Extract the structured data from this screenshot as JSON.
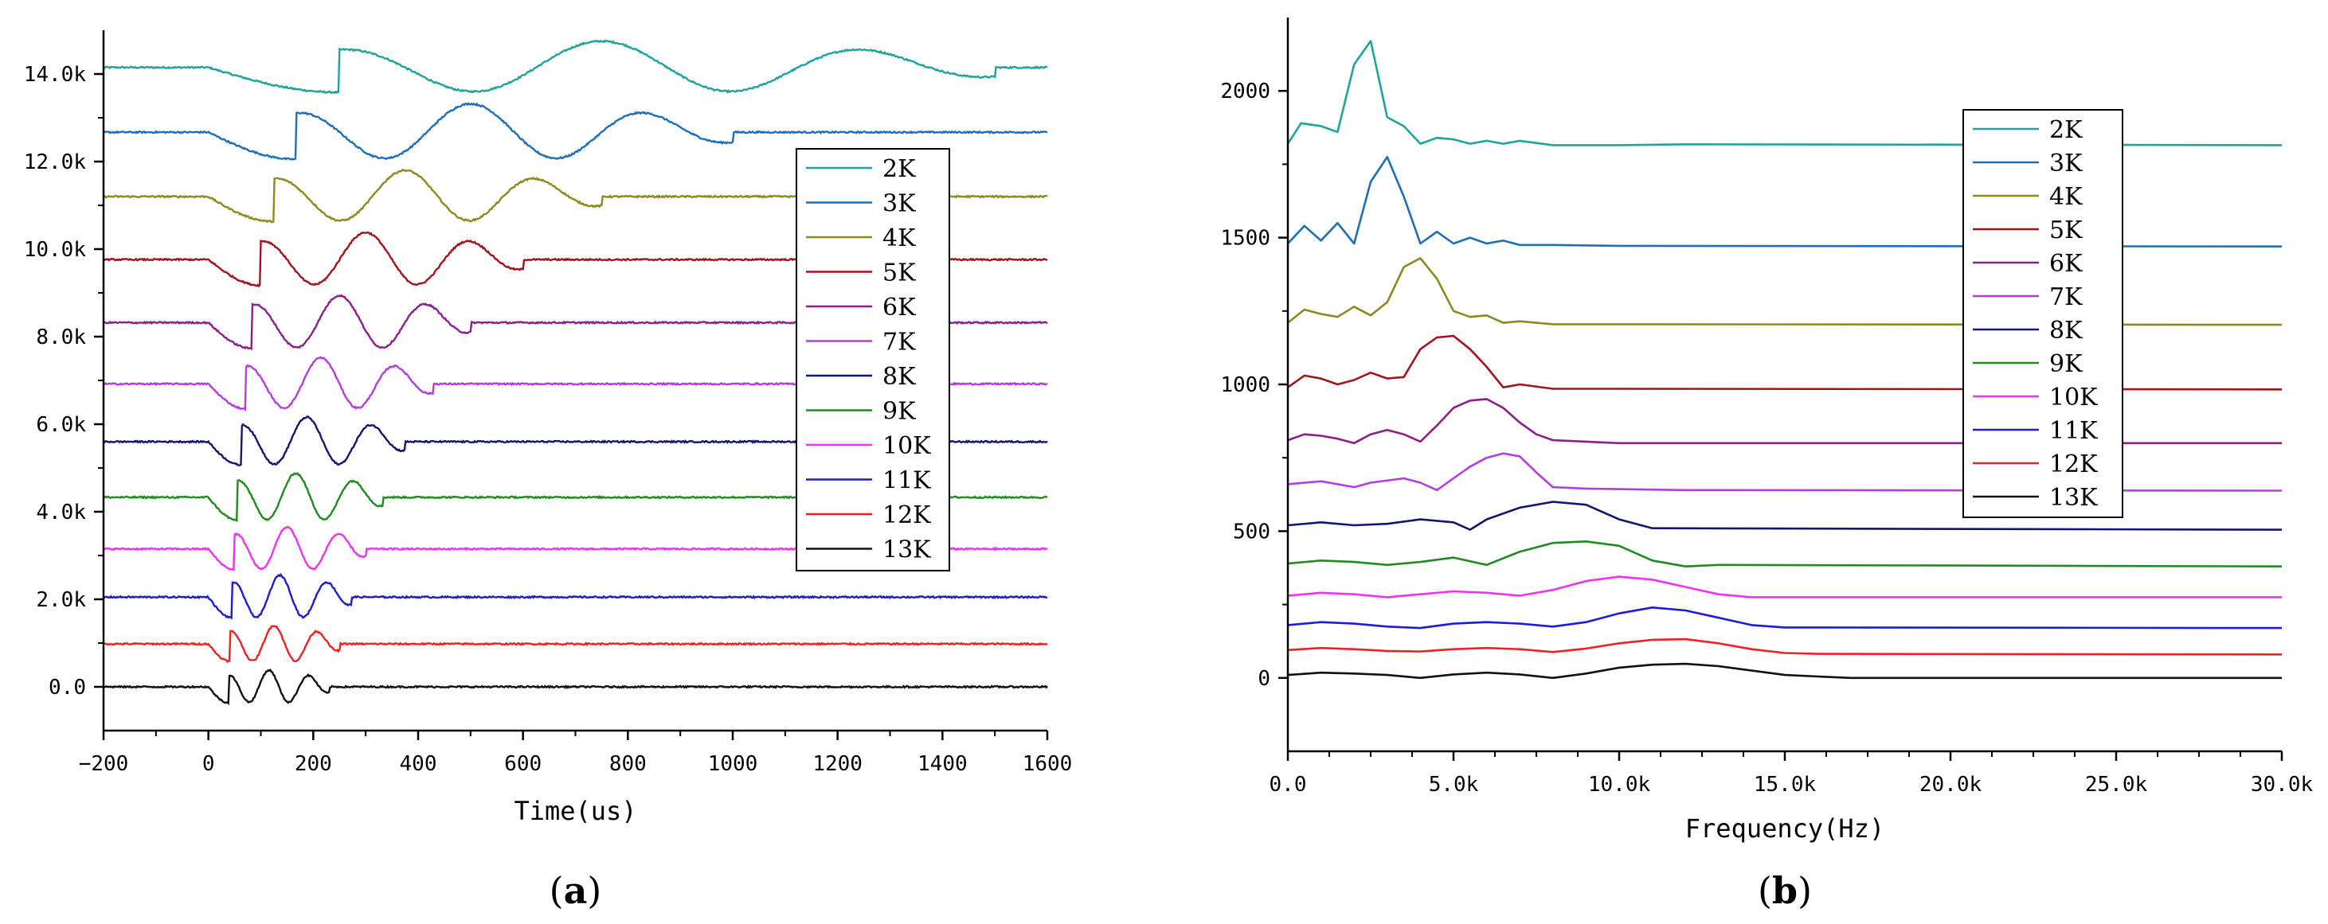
{
  "chart_data": [
    {
      "type": "line",
      "panel_label": "a",
      "xlabel": "Time(us)",
      "ylabel": "",
      "xlim": [
        -200,
        1600
      ],
      "ylim": [
        -1000,
        15000
      ],
      "x_ticks": [
        -200,
        0,
        200,
        400,
        600,
        800,
        1000,
        1200,
        1400,
        1600
      ],
      "x_tick_labels": [
        "−200",
        "0",
        "200",
        "400",
        "600",
        "800",
        "1000",
        "1200",
        "1400",
        "1600"
      ],
      "y_ticks": [
        0,
        2000,
        4000,
        6000,
        8000,
        10000,
        12000,
        14000
      ],
      "y_tick_labels": [
        "0.0",
        "2.0k",
        "4.0k",
        "6.0k",
        "8.0k",
        "10.0k",
        "12.0k",
        "14.0k"
      ],
      "legend_position": "right",
      "series": [
        {
          "name": "2K",
          "color": "#20a39a",
          "baseline": 14150,
          "amplitude": 600,
          "freq_khz": 2,
          "cycles": 3
        },
        {
          "name": "3K",
          "color": "#1f6fb4",
          "baseline": 12670,
          "amplitude": 650,
          "freq_khz": 3,
          "cycles": 3
        },
        {
          "name": "4K",
          "color": "#8c8a1e",
          "baseline": 11200,
          "amplitude": 600,
          "freq_khz": 4,
          "cycles": 3
        },
        {
          "name": "5K",
          "color": "#a0141e",
          "baseline": 9760,
          "amplitude": 620,
          "freq_khz": 5,
          "cycles": 3
        },
        {
          "name": "6K",
          "color": "#8b1f8b",
          "baseline": 8320,
          "amplitude": 620,
          "freq_khz": 6,
          "cycles": 3
        },
        {
          "name": "7K",
          "color": "#b23ee0",
          "baseline": 6920,
          "amplitude": 600,
          "freq_khz": 7,
          "cycles": 3
        },
        {
          "name": "8K",
          "color": "#14156e",
          "baseline": 5600,
          "amplitude": 560,
          "freq_khz": 8,
          "cycles": 3
        },
        {
          "name": "9K",
          "color": "#1e8c1e",
          "baseline": 4330,
          "amplitude": 550,
          "freq_khz": 9,
          "cycles": 3
        },
        {
          "name": "10K",
          "color": "#ee33ee",
          "baseline": 3150,
          "amplitude": 500,
          "freq_khz": 10,
          "cycles": 3
        },
        {
          "name": "11K",
          "color": "#1c1cd6",
          "baseline": 2050,
          "amplitude": 500,
          "freq_khz": 11,
          "cycles": 3
        },
        {
          "name": "12K",
          "color": "#ee2222",
          "baseline": 980,
          "amplitude": 420,
          "freq_khz": 12,
          "cycles": 3
        },
        {
          "name": "13K",
          "color": "#111111",
          "baseline": 0,
          "amplitude": 380,
          "freq_khz": 13,
          "cycles": 3
        }
      ]
    },
    {
      "type": "line",
      "panel_label": "b",
      "xlabel": "Frequency(Hz)",
      "ylabel": "",
      "xlim": [
        0,
        30000
      ],
      "ylim": [
        -250,
        2250
      ],
      "x_ticks": [
        0,
        5000,
        10000,
        15000,
        20000,
        25000,
        30000
      ],
      "x_tick_labels": [
        "0.0",
        "5.0k",
        "10.0k",
        "15.0k",
        "20.0k",
        "25.0k",
        "30.0k"
      ],
      "y_ticks": [
        0,
        500,
        1000,
        1500,
        2000
      ],
      "y_tick_labels": [
        "0",
        "500",
        "1000",
        "1500",
        "2000"
      ],
      "legend_position": "right",
      "series": [
        {
          "name": "2K",
          "color": "#20a39a",
          "x": [
            0,
            400,
            1000,
            1500,
            2000,
            2500,
            3000,
            3500,
            4000,
            4500,
            5000,
            5500,
            6000,
            6500,
            7000,
            8000,
            10000,
            12000,
            30000
          ],
          "y": [
            1820,
            1890,
            1880,
            1860,
            2090,
            2170,
            1910,
            1880,
            1820,
            1840,
            1835,
            1820,
            1830,
            1820,
            1830,
            1815,
            1815,
            1818,
            1815
          ]
        },
        {
          "name": "3K",
          "color": "#1f6fb4",
          "x": [
            0,
            500,
            1000,
            1500,
            2000,
            2500,
            3000,
            3500,
            4000,
            4500,
            5000,
            5500,
            6000,
            6500,
            7000,
            8000,
            10000,
            30000
          ],
          "y": [
            1480,
            1540,
            1490,
            1550,
            1480,
            1690,
            1775,
            1640,
            1480,
            1520,
            1480,
            1500,
            1480,
            1490,
            1475,
            1475,
            1472,
            1470
          ]
        },
        {
          "name": "4K",
          "color": "#8c8a1e",
          "x": [
            0,
            500,
            1000,
            1500,
            2000,
            2500,
            3000,
            3500,
            4000,
            4500,
            5000,
            5500,
            6000,
            6500,
            7000,
            8000,
            10000,
            30000
          ],
          "y": [
            1210,
            1255,
            1240,
            1230,
            1265,
            1235,
            1280,
            1400,
            1430,
            1360,
            1250,
            1230,
            1235,
            1210,
            1215,
            1205,
            1205,
            1203
          ]
        },
        {
          "name": "5K",
          "color": "#a0141e",
          "x": [
            0,
            500,
            1000,
            1500,
            2000,
            2500,
            3000,
            3500,
            4000,
            4500,
            5000,
            5500,
            6000,
            6500,
            7000,
            8000,
            10000,
            30000
          ],
          "y": [
            990,
            1030,
            1020,
            1000,
            1015,
            1040,
            1020,
            1025,
            1120,
            1160,
            1165,
            1120,
            1060,
            990,
            1000,
            985,
            985,
            983
          ]
        },
        {
          "name": "6K",
          "color": "#8b1f8b",
          "x": [
            0,
            500,
            1000,
            1500,
            2000,
            2500,
            3000,
            3500,
            4000,
            4500,
            5000,
            5500,
            6000,
            6500,
            7000,
            7500,
            8000,
            10000,
            30000
          ],
          "y": [
            810,
            830,
            825,
            815,
            800,
            830,
            845,
            830,
            805,
            860,
            920,
            945,
            950,
            920,
            870,
            830,
            810,
            800,
            800
          ]
        },
        {
          "name": "7K",
          "color": "#b23ee0",
          "x": [
            0,
            1000,
            1500,
            2000,
            2500,
            3500,
            4000,
            4500,
            5000,
            5500,
            6000,
            6500,
            7000,
            7500,
            8000,
            9000,
            12000,
            30000
          ],
          "y": [
            660,
            670,
            660,
            650,
            665,
            680,
            665,
            640,
            680,
            720,
            750,
            765,
            755,
            700,
            650,
            645,
            640,
            638
          ]
        },
        {
          "name": "8K",
          "color": "#14156e",
          "x": [
            0,
            1000,
            2000,
            3000,
            4000,
            5000,
            5500,
            6000,
            7000,
            8000,
            9000,
            10000,
            11000,
            30000
          ],
          "y": [
            520,
            530,
            520,
            525,
            540,
            530,
            505,
            540,
            580,
            600,
            590,
            540,
            510,
            505
          ]
        },
        {
          "name": "9K",
          "color": "#1e8c1e",
          "x": [
            0,
            1000,
            2000,
            3000,
            4000,
            5000,
            6000,
            7000,
            8000,
            9000,
            10000,
            11000,
            12000,
            13000,
            30000
          ],
          "y": [
            390,
            400,
            395,
            385,
            395,
            410,
            385,
            430,
            460,
            465,
            450,
            400,
            380,
            385,
            380
          ]
        },
        {
          "name": "10K",
          "color": "#ee33ee",
          "x": [
            0,
            1000,
            2000,
            3000,
            4000,
            5000,
            6000,
            7000,
            8000,
            9000,
            10000,
            11000,
            12000,
            13000,
            14000,
            30000
          ],
          "y": [
            280,
            290,
            285,
            275,
            285,
            295,
            290,
            280,
            300,
            330,
            345,
            335,
            310,
            285,
            275,
            275
          ]
        },
        {
          "name": "11K",
          "color": "#1c1cd6",
          "x": [
            0,
            1000,
            2000,
            3000,
            4000,
            5000,
            6000,
            7000,
            8000,
            9000,
            10000,
            11000,
            12000,
            13000,
            14000,
            15000,
            30000
          ],
          "y": [
            180,
            190,
            185,
            175,
            170,
            185,
            190,
            185,
            175,
            190,
            220,
            240,
            230,
            205,
            180,
            172,
            170
          ]
        },
        {
          "name": "12K",
          "color": "#ee2222",
          "x": [
            0,
            1000,
            2000,
            3000,
            4000,
            5000,
            6000,
            7000,
            8000,
            9000,
            10000,
            11000,
            12000,
            13000,
            14000,
            15000,
            16000,
            30000
          ],
          "y": [
            95,
            102,
            98,
            92,
            90,
            98,
            102,
            98,
            88,
            100,
            118,
            130,
            132,
            118,
            98,
            85,
            82,
            80
          ]
        },
        {
          "name": "13K",
          "color": "#111111",
          "x": [
            0,
            1000,
            2000,
            3000,
            4000,
            5000,
            6000,
            7000,
            8000,
            9000,
            10000,
            11000,
            12000,
            13000,
            14000,
            15000,
            16000,
            17000,
            30000
          ],
          "y": [
            10,
            18,
            15,
            10,
            0,
            12,
            18,
            12,
            0,
            15,
            35,
            45,
            48,
            40,
            25,
            10,
            5,
            0,
            0
          ]
        }
      ]
    }
  ]
}
